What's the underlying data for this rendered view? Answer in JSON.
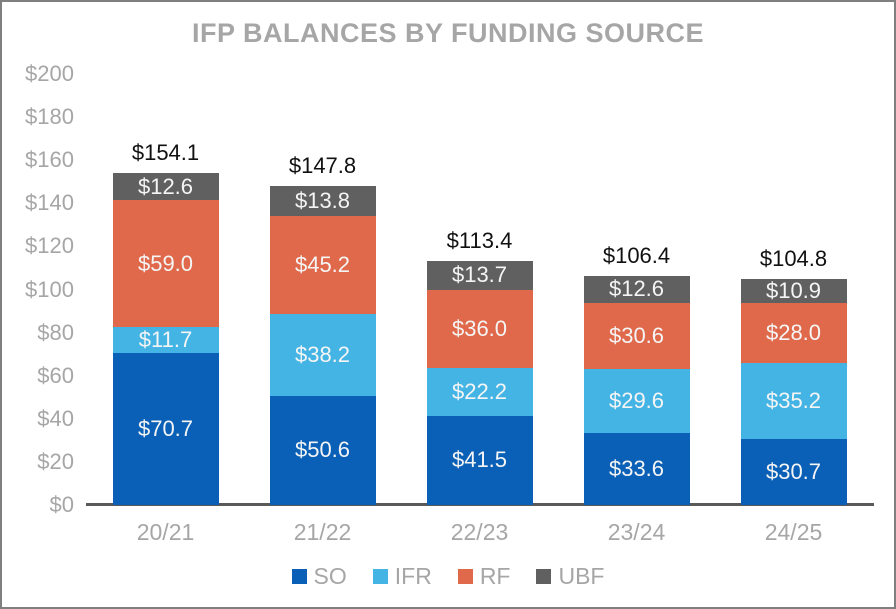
{
  "title": "IFP BALANCES BY FUNDING SOURCE",
  "colors": {
    "so": "#0a60b6",
    "ifr": "#44b4e4",
    "rf": "#df694a",
    "ubf": "#606060",
    "title_text": "#a6a6a6",
    "axis_text": "#a6a6a6",
    "total_text": "#111111",
    "segment_text": "#f5f5f5",
    "axis_line": "#595959",
    "frame_border": "#7f7f7f",
    "background": "#ffffff"
  },
  "chart_data": {
    "type": "bar",
    "stacked": true,
    "title": "IFP BALANCES BY FUNDING SOURCE",
    "categories": [
      "20/21",
      "21/22",
      "22/23",
      "23/24",
      "24/25"
    ],
    "series": [
      {
        "name": "SO",
        "color": "#0a60b6",
        "values": [
          70.7,
          50.6,
          41.5,
          33.6,
          30.7
        ]
      },
      {
        "name": "IFR",
        "color": "#44b4e4",
        "values": [
          11.7,
          38.2,
          22.2,
          29.6,
          35.2
        ]
      },
      {
        "name": "RF",
        "color": "#df694a",
        "values": [
          59.0,
          45.2,
          36.0,
          30.6,
          28.0
        ]
      },
      {
        "name": "UBF",
        "color": "#606060",
        "values": [
          12.6,
          13.8,
          13.7,
          12.6,
          10.9
        ]
      }
    ],
    "totals": [
      "$154.1",
      "$147.8",
      "$113.4",
      "$106.4",
      "$104.8"
    ],
    "segment_labels": [
      [
        "$70.7",
        "$50.6",
        "$41.5",
        "$33.6",
        "$30.7"
      ],
      [
        "$11.7",
        "$38.2",
        "$22.2",
        "$29.6",
        "$35.2"
      ],
      [
        "$59.0",
        "$45.2",
        "$36.0",
        "$30.6",
        "$28.0"
      ],
      [
        "$12.6",
        "$13.8",
        "$13.7",
        "$12.6",
        "$10.9"
      ]
    ],
    "y_axis": {
      "min": 0,
      "max": 200,
      "step": 20,
      "tick_labels": [
        "$0",
        "$20",
        "$40",
        "$60",
        "$80",
        "$100",
        "$120",
        "$140",
        "$160",
        "$180",
        "$200"
      ]
    },
    "grid": false,
    "legend": {
      "position": "bottom",
      "entries": [
        "SO",
        "IFR",
        "RF",
        "UBF"
      ]
    }
  }
}
